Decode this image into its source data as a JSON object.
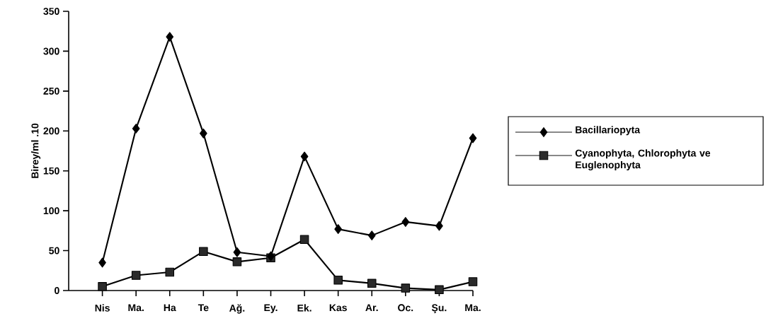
{
  "chart_data": {
    "type": "line",
    "ylabel": "Birey/ml .10",
    "categories": [
      "Nis",
      "Ma.",
      "Ha",
      "Te",
      "Ağ.",
      "Ey.",
      "Ek.",
      "Kas",
      "Ar.",
      "Oc.",
      "Şu.",
      "Ma."
    ],
    "ylim": [
      0,
      350
    ],
    "yticks": [
      0,
      50,
      100,
      150,
      200,
      250,
      300,
      350
    ],
    "legend": "right",
    "line_style": "solid",
    "series": [
      {
        "name": "Bacillariopyta",
        "color": "#000000",
        "marker": "diamond",
        "values": [
          35,
          203,
          318,
          197,
          48,
          43,
          168,
          77,
          69,
          86,
          81,
          191
        ]
      },
      {
        "name": "Cyanophyta, Chlorophyta ve Euglenophyta",
        "color": "#2a2a2a",
        "marker": "square",
        "values": [
          5,
          19,
          23,
          49,
          36,
          41,
          64,
          13,
          9,
          3,
          1,
          11
        ]
      }
    ]
  }
}
